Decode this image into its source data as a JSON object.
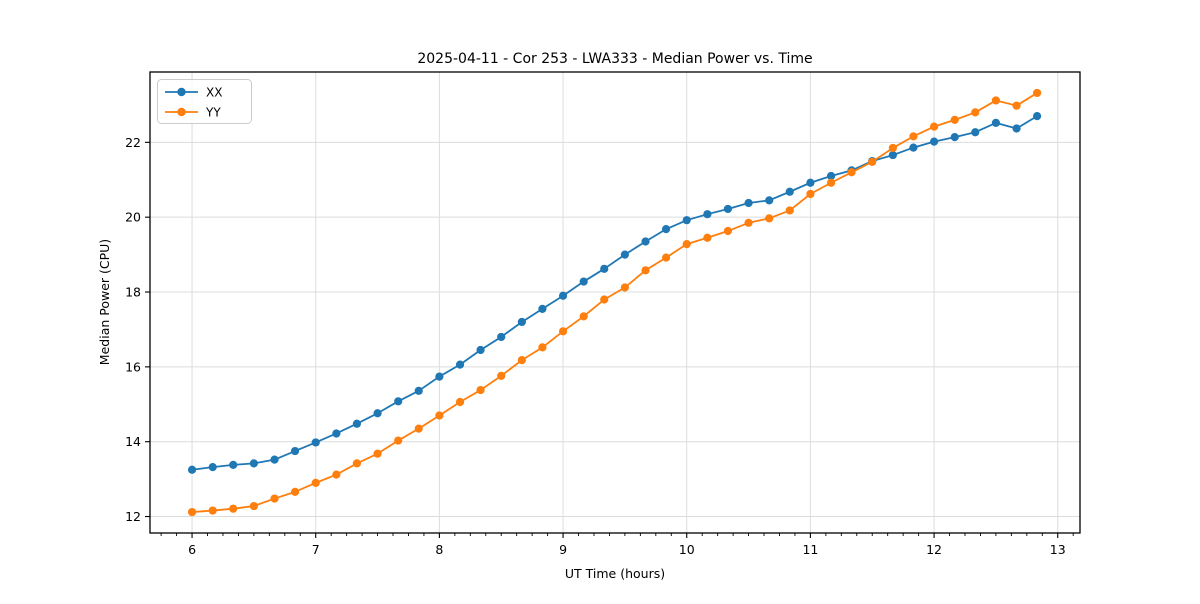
{
  "figure": {
    "background": "#ffffff"
  },
  "chart_data": {
    "type": "line",
    "title": "2025-04-11 - Cor 253 - LWA333 - Median Power vs. Time",
    "xlabel": "UT Time (hours)",
    "ylabel": "Median Power (CPU)",
    "x": [
      6.0,
      6.167,
      6.333,
      6.5,
      6.667,
      6.833,
      7.0,
      7.167,
      7.333,
      7.5,
      7.667,
      7.833,
      8.0,
      8.167,
      8.333,
      8.5,
      8.667,
      8.833,
      9.0,
      9.167,
      9.333,
      9.5,
      9.667,
      9.833,
      10.0,
      10.167,
      10.333,
      10.5,
      10.667,
      10.833,
      11.0,
      11.167,
      11.333,
      11.5,
      11.667,
      11.833,
      12.0,
      12.167,
      12.333,
      12.5,
      12.667,
      12.833
    ],
    "series": [
      {
        "name": "XX",
        "color": "#1f77b4",
        "values": [
          13.25,
          13.32,
          13.38,
          13.42,
          13.52,
          13.75,
          13.98,
          14.22,
          14.48,
          14.76,
          15.08,
          15.36,
          15.74,
          16.06,
          16.45,
          16.8,
          17.2,
          17.55,
          17.9,
          18.28,
          18.62,
          19.0,
          19.35,
          19.68,
          19.92,
          20.08,
          20.22,
          20.38,
          20.45,
          20.68,
          20.92,
          21.1,
          21.25,
          21.5,
          21.66,
          21.86,
          22.02,
          22.14,
          22.27,
          22.52,
          22.37,
          22.7
        ]
      },
      {
        "name": "YY",
        "color": "#ff7f0e",
        "values": [
          12.12,
          12.16,
          12.21,
          12.28,
          12.48,
          12.66,
          12.9,
          13.12,
          13.42,
          13.68,
          14.03,
          14.35,
          14.7,
          15.06,
          15.38,
          15.76,
          16.18,
          16.52,
          16.95,
          17.35,
          17.8,
          18.12,
          18.58,
          18.92,
          19.28,
          19.45,
          19.63,
          19.85,
          19.97,
          20.18,
          20.62,
          20.92,
          21.2,
          21.48,
          21.85,
          22.16,
          22.42,
          22.6,
          22.8,
          23.12,
          22.98,
          23.32
        ]
      }
    ],
    "xlim": [
      5.66,
      13.18
    ],
    "ylim": [
      11.56,
      23.88
    ],
    "xticks": [
      6,
      7,
      8,
      9,
      10,
      11,
      12,
      13
    ],
    "yticks": [
      12,
      14,
      16,
      18,
      20,
      22
    ],
    "x_minor_tick_step": 0.125,
    "grid": true,
    "legend": {
      "position": "upper-left",
      "entries": [
        "XX",
        "YY"
      ]
    }
  },
  "style": {
    "grid_color": "#dcdcdc",
    "spine_color": "#000000",
    "tick_color": "#000000",
    "legend_border_color": "#cccccc",
    "legend_fill_color": "#ffffff"
  }
}
